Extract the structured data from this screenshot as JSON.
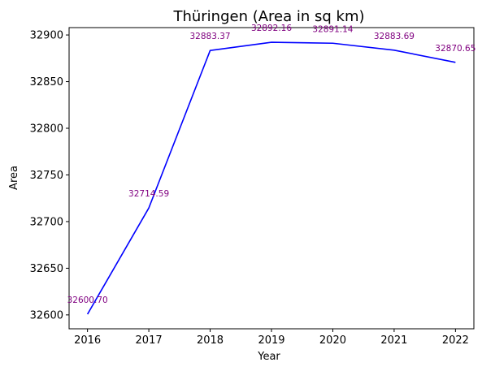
{
  "chart_data": {
    "type": "line",
    "title": "Thüringen (Area in sq km)",
    "xlabel": "Year",
    "ylabel": "Area",
    "x": [
      2016,
      2017,
      2018,
      2019,
      2020,
      2021,
      2022
    ],
    "x_ticks": [
      "2016",
      "2017",
      "2018",
      "2019",
      "2020",
      "2021",
      "2022"
    ],
    "xlim": [
      2015.7,
      2022.3
    ],
    "ylim": [
      32585.1,
      32907.9
    ],
    "y_ticks": [
      32600,
      32650,
      32700,
      32750,
      32800,
      32850,
      32900
    ],
    "y_tick_labels": [
      "32600",
      "32650",
      "32700",
      "32750",
      "32800",
      "32850",
      "32900"
    ],
    "series": [
      {
        "values": [
          32600.7,
          32714.59,
          32883.37,
          32892.16,
          32891.14,
          32883.69,
          32870.65
        ],
        "data_labels": [
          "32600.70",
          "32714.59",
          "32883.37",
          "32892.16",
          "32891.14",
          "32883.69",
          "32870.65"
        ],
        "color": "#0000ff",
        "label_color": "#800080"
      }
    ],
    "grid": false,
    "legend": "none"
  }
}
